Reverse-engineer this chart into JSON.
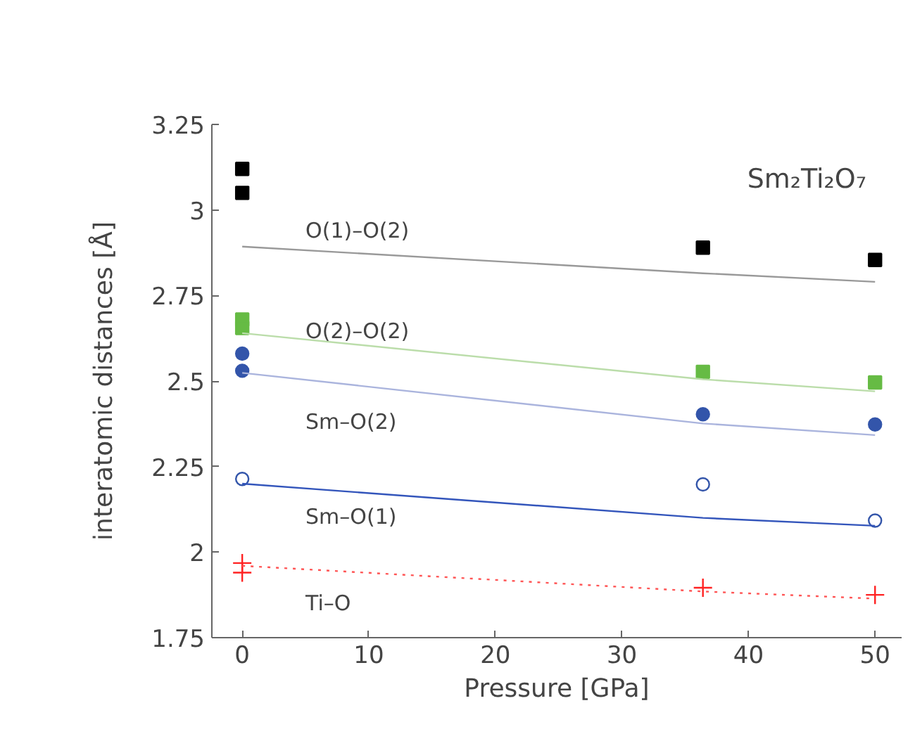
{
  "chart_data": {
    "type": "scatter",
    "title": "Sm₂Ti₂O₇",
    "xlabel": "Pressure [GPa]",
    "ylabel": "interatomic distances [Å]",
    "xlim": [
      -2.4,
      52.1
    ],
    "ylim": [
      1.75,
      3.25
    ],
    "xticks": [
      0,
      10,
      20,
      30,
      40,
      50
    ],
    "yticks": [
      1.75,
      2,
      2.25,
      2.5,
      2.75,
      3,
      3.25
    ],
    "series": [
      {
        "marker": "square",
        "color": "#000000",
        "x": [
          0,
          0,
          36.4,
          50
        ],
        "values": [
          3.12,
          3.05,
          2.89,
          2.854
        ]
      },
      {
        "marker": "square",
        "color": "#66bb44",
        "x": [
          0,
          0,
          36.4,
          50
        ],
        "values": [
          2.68,
          2.655,
          2.527,
          2.496
        ]
      },
      {
        "marker": "circle",
        "color": "#3355aa",
        "x": [
          0,
          0,
          36.4,
          50
        ],
        "values": [
          2.58,
          2.53,
          2.403,
          2.373
        ]
      },
      {
        "marker": "circle_open",
        "color": "#3355aa",
        "x": [
          0,
          36.4,
          50
        ],
        "values": [
          2.214,
          2.198,
          2.092
        ]
      },
      {
        "marker": "cross",
        "color": "#ff2222",
        "x": [
          0,
          0,
          36.4,
          50
        ],
        "values": [
          1.968,
          1.94,
          1.896,
          1.875
        ]
      },
      {
        "type": "line",
        "name": "O(1)–O(2)",
        "line_style": "solid",
        "color": "#999999",
        "x": [
          0,
          36.4,
          50
        ],
        "values": [
          2.893,
          2.815,
          2.79
        ]
      },
      {
        "type": "line",
        "name": "O(2)–O(2)",
        "line_style": "solid",
        "color": "#bbddaa",
        "x": [
          0,
          36.4,
          50
        ],
        "values": [
          2.64,
          2.505,
          2.47
        ]
      },
      {
        "type": "line",
        "name": "Sm–O(2)",
        "line_style": "solid",
        "color": "#aab4dd",
        "x": [
          0,
          36.4,
          50
        ],
        "values": [
          2.524,
          2.376,
          2.342
        ]
      },
      {
        "type": "line",
        "name": "Sm–O(1)",
        "line_style": "solid",
        "color": "#3355bb",
        "x": [
          0,
          36.4,
          50
        ],
        "values": [
          2.2,
          2.1,
          2.077
        ]
      },
      {
        "type": "line",
        "name": "Ti–O",
        "line_style": "dotted",
        "color": "#ff5555",
        "x": [
          0,
          36.4,
          50
        ],
        "values": [
          1.96,
          1.885,
          1.864
        ]
      }
    ]
  }
}
